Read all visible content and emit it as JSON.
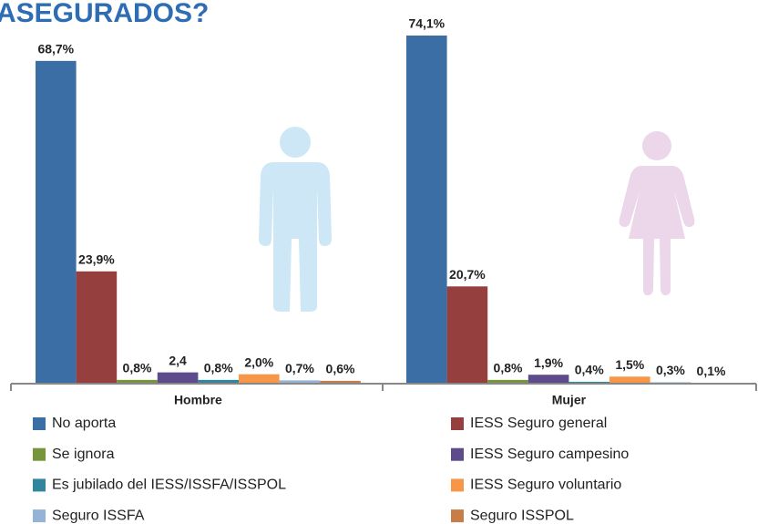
{
  "chart_data": {
    "type": "bar",
    "title": "ASEGURADOS?",
    "categories": [
      "Hombre",
      "Mujer"
    ],
    "series": [
      {
        "name": "No aporta",
        "color": "#3A6EA5",
        "values": [
          68.7,
          74.1
        ],
        "value_labels": [
          "68,7%",
          "74,1%"
        ]
      },
      {
        "name": "IESS Seguro general",
        "color": "#953F3E",
        "values": [
          23.9,
          20.7
        ],
        "value_labels": [
          "23,9%",
          "20,7%"
        ]
      },
      {
        "name": "Se ignora",
        "color": "#77963B",
        "values": [
          0.8,
          0.8
        ],
        "value_labels": [
          "0,8%",
          "0,8%"
        ]
      },
      {
        "name": "IESS Seguro campesino",
        "color": "#5E4B8B",
        "values": [
          2.4,
          1.9
        ],
        "value_labels": [
          "2,4",
          "1,9%"
        ]
      },
      {
        "name": "Es jubilado del IESS/ISSFA/ISSPOL",
        "color": "#31859C",
        "values": [
          0.8,
          0.4
        ],
        "value_labels": [
          "0,8%",
          "0,4%"
        ]
      },
      {
        "name": "IESS Seguro voluntario",
        "color": "#F79646",
        "values": [
          2.0,
          1.5
        ],
        "value_labels": [
          "2,0%",
          "1,5%"
        ]
      },
      {
        "name": "Seguro ISSFA",
        "color": "#95B3D7",
        "values": [
          0.7,
          0.3
        ],
        "value_labels": [
          "0,7%",
          "0,3%"
        ]
      },
      {
        "name": "Seguro ISSPOL",
        "color": "#C87D46",
        "values": [
          0.6,
          0.1
        ],
        "value_labels": [
          "0,6%",
          "0,1%"
        ]
      }
    ]
  }
}
